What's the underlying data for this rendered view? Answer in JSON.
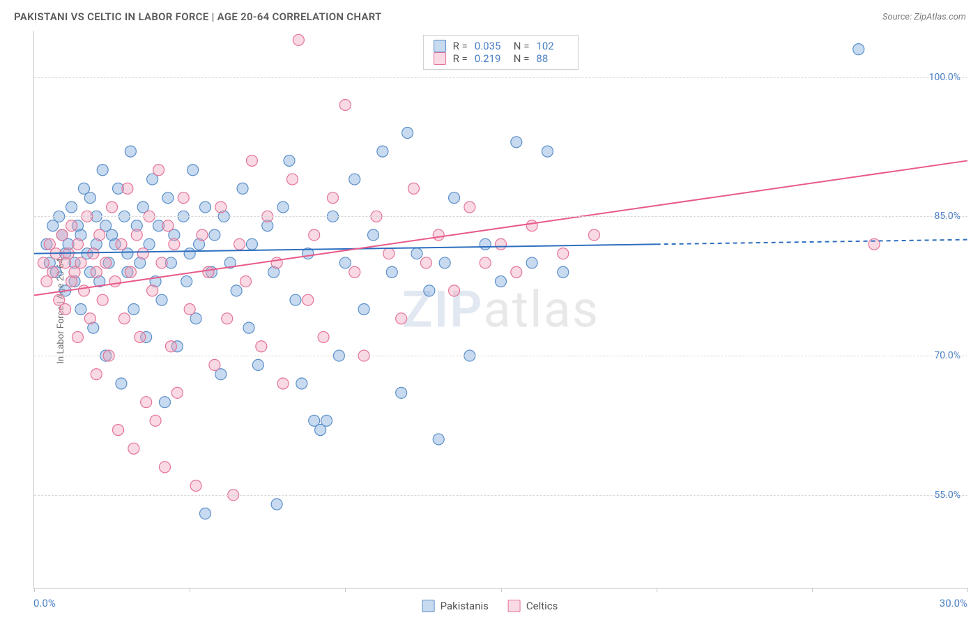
{
  "header": {
    "title": "PAKISTANI VS CELTIC IN LABOR FORCE | AGE 20-64 CORRELATION CHART",
    "source": "Source: ZipAtlas.com"
  },
  "chart": {
    "type": "scatter",
    "xlim": [
      0,
      30
    ],
    "ylim": [
      45,
      105
    ],
    "x_tick_positions": [
      0,
      5,
      10,
      15,
      20,
      25,
      30
    ],
    "x_start_label": "0.0%",
    "x_end_label": "30.0%",
    "y_gridlines": [
      55,
      70,
      85,
      100
    ],
    "y_tick_labels": [
      "55.0%",
      "70.0%",
      "85.0%",
      "100.0%"
    ],
    "ylabel": "In Labor Force | Age 20-64",
    "background_color": "#ffffff",
    "grid_color": "#d8d8d8",
    "axis_color": "#c8c8c8",
    "label_color": "#4a7fc4",
    "marker_radius": 8,
    "marker_stroke_width": 1.2,
    "line_width": 2,
    "series": [
      {
        "name": "Pakistanis",
        "color_fill": "rgba(131,173,222,0.45)",
        "color_stroke": "#5b8fc9",
        "line_color": "#2e6fc0",
        "R": "0.035",
        "N": "102",
        "trend_solid": {
          "x1": 0,
          "y1": 81.0,
          "x2": 20.0,
          "y2": 82.0
        },
        "trend_dashed": {
          "x1": 20.0,
          "y1": 82.0,
          "x2": 30.0,
          "y2": 82.5
        },
        "points": [
          [
            0.4,
            82
          ],
          [
            0.5,
            80
          ],
          [
            0.6,
            84
          ],
          [
            0.7,
            79
          ],
          [
            0.8,
            85
          ],
          [
            0.9,
            83
          ],
          [
            1.0,
            81
          ],
          [
            1.0,
            77
          ],
          [
            1.1,
            82
          ],
          [
            1.2,
            86
          ],
          [
            1.3,
            80
          ],
          [
            1.3,
            78
          ],
          [
            1.4,
            84
          ],
          [
            1.5,
            75
          ],
          [
            1.5,
            83
          ],
          [
            1.6,
            88
          ],
          [
            1.7,
            81
          ],
          [
            1.8,
            79
          ],
          [
            1.8,
            87
          ],
          [
            1.9,
            73
          ],
          [
            2.0,
            85
          ],
          [
            2.0,
            82
          ],
          [
            2.1,
            78
          ],
          [
            2.2,
            90
          ],
          [
            2.3,
            70
          ],
          [
            2.3,
            84
          ],
          [
            2.4,
            80
          ],
          [
            2.5,
            83
          ],
          [
            2.6,
            82
          ],
          [
            2.7,
            88
          ],
          [
            2.8,
            67
          ],
          [
            2.9,
            85
          ],
          [
            3.0,
            81
          ],
          [
            3.0,
            79
          ],
          [
            3.1,
            92
          ],
          [
            3.2,
            75
          ],
          [
            3.3,
            84
          ],
          [
            3.4,
            80
          ],
          [
            3.5,
            86
          ],
          [
            3.6,
            72
          ],
          [
            3.7,
            82
          ],
          [
            3.8,
            89
          ],
          [
            3.9,
            78
          ],
          [
            4.0,
            84
          ],
          [
            4.1,
            76
          ],
          [
            4.2,
            65
          ],
          [
            4.3,
            87
          ],
          [
            4.4,
            80
          ],
          [
            4.5,
            83
          ],
          [
            4.6,
            71
          ],
          [
            4.8,
            85
          ],
          [
            4.9,
            78
          ],
          [
            5.0,
            81
          ],
          [
            5.1,
            90
          ],
          [
            5.2,
            74
          ],
          [
            5.3,
            82
          ],
          [
            5.5,
            53
          ],
          [
            5.5,
            86
          ],
          [
            5.7,
            79
          ],
          [
            5.8,
            83
          ],
          [
            6.0,
            68
          ],
          [
            6.1,
            85
          ],
          [
            6.3,
            80
          ],
          [
            6.5,
            77
          ],
          [
            6.7,
            88
          ],
          [
            6.9,
            73
          ],
          [
            7.0,
            82
          ],
          [
            7.2,
            69
          ],
          [
            7.5,
            84
          ],
          [
            7.7,
            79
          ],
          [
            7.8,
            54
          ],
          [
            8.0,
            86
          ],
          [
            8.2,
            91
          ],
          [
            8.4,
            76
          ],
          [
            8.6,
            67
          ],
          [
            8.8,
            81
          ],
          [
            9.0,
            63
          ],
          [
            9.2,
            62
          ],
          [
            9.4,
            63
          ],
          [
            9.6,
            85
          ],
          [
            9.8,
            70
          ],
          [
            10.0,
            80
          ],
          [
            10.3,
            89
          ],
          [
            10.6,
            75
          ],
          [
            10.9,
            83
          ],
          [
            11.2,
            92
          ],
          [
            11.5,
            79
          ],
          [
            11.8,
            66
          ],
          [
            12.0,
            94
          ],
          [
            12.3,
            81
          ],
          [
            12.7,
            77
          ],
          [
            13.0,
            61
          ],
          [
            13.2,
            80
          ],
          [
            13.5,
            87
          ],
          [
            14.0,
            70
          ],
          [
            14.5,
            82
          ],
          [
            15.0,
            78
          ],
          [
            15.5,
            93
          ],
          [
            16.0,
            80
          ],
          [
            16.5,
            92
          ],
          [
            17.0,
            79
          ],
          [
            26.5,
            103
          ]
        ]
      },
      {
        "name": "Celtics",
        "color_fill": "rgba(240,160,185,0.40)",
        "color_stroke": "#e47398",
        "line_color": "#e85a8a",
        "R": "0.219",
        "N": "88",
        "trend_solid": {
          "x1": 0,
          "y1": 76.5,
          "x2": 30.0,
          "y2": 91.0
        },
        "trend_dashed": null,
        "points": [
          [
            0.3,
            80
          ],
          [
            0.4,
            78
          ],
          [
            0.5,
            82
          ],
          [
            0.6,
            79
          ],
          [
            0.7,
            81
          ],
          [
            0.8,
            76
          ],
          [
            0.9,
            83
          ],
          [
            1.0,
            80
          ],
          [
            1.0,
            75
          ],
          [
            1.1,
            81
          ],
          [
            1.2,
            78
          ],
          [
            1.2,
            84
          ],
          [
            1.3,
            79
          ],
          [
            1.4,
            72
          ],
          [
            1.4,
            82
          ],
          [
            1.5,
            80
          ],
          [
            1.6,
            77
          ],
          [
            1.7,
            85
          ],
          [
            1.8,
            74
          ],
          [
            1.9,
            81
          ],
          [
            2.0,
            79
          ],
          [
            2.0,
            68
          ],
          [
            2.1,
            83
          ],
          [
            2.2,
            76
          ],
          [
            2.3,
            80
          ],
          [
            2.4,
            70
          ],
          [
            2.5,
            86
          ],
          [
            2.6,
            78
          ],
          [
            2.7,
            62
          ],
          [
            2.8,
            82
          ],
          [
            2.9,
            74
          ],
          [
            3.0,
            88
          ],
          [
            3.1,
            79
          ],
          [
            3.2,
            60
          ],
          [
            3.3,
            83
          ],
          [
            3.4,
            72
          ],
          [
            3.5,
            81
          ],
          [
            3.6,
            65
          ],
          [
            3.7,
            85
          ],
          [
            3.8,
            77
          ],
          [
            3.9,
            63
          ],
          [
            4.0,
            90
          ],
          [
            4.1,
            80
          ],
          [
            4.2,
            58
          ],
          [
            4.3,
            84
          ],
          [
            4.4,
            71
          ],
          [
            4.5,
            82
          ],
          [
            4.6,
            66
          ],
          [
            4.8,
            87
          ],
          [
            5.0,
            75
          ],
          [
            5.2,
            56
          ],
          [
            5.4,
            83
          ],
          [
            5.6,
            79
          ],
          [
            5.8,
            69
          ],
          [
            6.0,
            86
          ],
          [
            6.2,
            74
          ],
          [
            6.4,
            55
          ],
          [
            6.6,
            82
          ],
          [
            6.8,
            78
          ],
          [
            7.0,
            91
          ],
          [
            7.3,
            71
          ],
          [
            7.5,
            85
          ],
          [
            7.8,
            80
          ],
          [
            8.0,
            67
          ],
          [
            8.3,
            89
          ],
          [
            8.5,
            104
          ],
          [
            8.8,
            76
          ],
          [
            9.0,
            83
          ],
          [
            9.3,
            72
          ],
          [
            9.6,
            87
          ],
          [
            10.0,
            97
          ],
          [
            10.3,
            79
          ],
          [
            10.6,
            70
          ],
          [
            11.0,
            85
          ],
          [
            11.4,
            81
          ],
          [
            11.8,
            74
          ],
          [
            12.2,
            88
          ],
          [
            12.6,
            80
          ],
          [
            13.0,
            83
          ],
          [
            13.5,
            77
          ],
          [
            14.0,
            86
          ],
          [
            14.5,
            80
          ],
          [
            15.0,
            82
          ],
          [
            15.5,
            79
          ],
          [
            16.0,
            84
          ],
          [
            17.0,
            81
          ],
          [
            18.0,
            83
          ],
          [
            27.0,
            82
          ]
        ]
      }
    ]
  },
  "legend": {
    "series1_label": "Pakistanis",
    "series2_label": "Celtics"
  },
  "stats_box": {
    "r_prefix": "R =",
    "n_prefix": "N ="
  },
  "watermark": {
    "part1": "ZIP",
    "part2": "atlas"
  }
}
